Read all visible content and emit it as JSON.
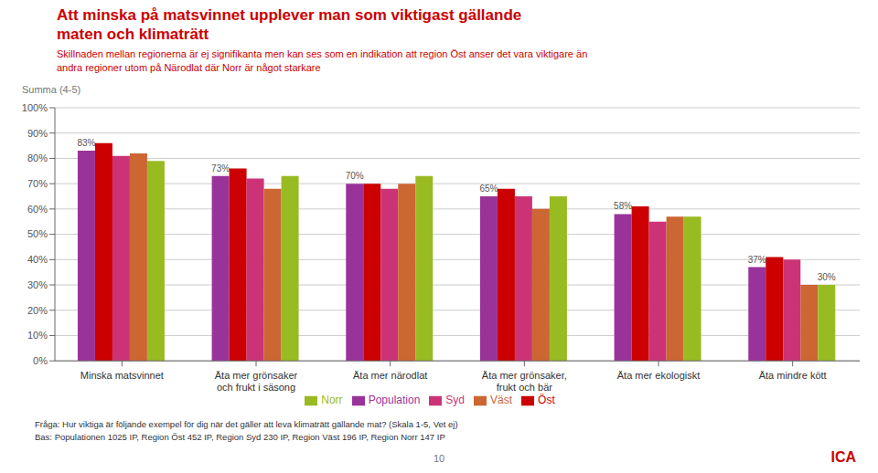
{
  "chart_data": {
    "type": "bar",
    "title": "Att minska på matsvinnet upplever man som viktigast gällande\nmaten och klimaträtt",
    "subtitle": "Skillnaden mellan regionerna är ej signifikanta men kan ses som en indikation att region Öst anser det vara viktigare än\nandra regioner utom på Närodlat där Norr är något starkare",
    "ylabel": "Summa (4-5)",
    "annotations": [
      "Fråga: Hur viktiga är följande exempel för dig när det gäller att leva klimaträtt gällande mat? (Skala 1-5, Vet ej)",
      "Bas: Populationen 1025 IP, Region Öst 452 IP, Region Syd  230 IP, Region Väst 196 IP, Region Norr 147 IP",
      "10",
      "ICA"
    ],
    "categories": [
      "Minska matsvinnet",
      "Äta mer grönsaker\noch frukt i säsong",
      "Äta mer närodlat",
      "Äta mer grönsaker,\nfrukt och bär",
      "Äta mer ekologiskt",
      "Äta mindre kött"
    ],
    "series": [
      {
        "name": "Population",
        "color": "#993399",
        "values": [
          83,
          73,
          70,
          65,
          58,
          37
        ],
        "value_labels": [
          "83%",
          "73%",
          "70%",
          "65%",
          "58%",
          "37%"
        ]
      },
      {
        "name": "Öst",
        "color": "#CC0000",
        "values": [
          86,
          76,
          70,
          68,
          61,
          41
        ]
      },
      {
        "name": "Syd",
        "color": "#CC3377",
        "values": [
          81,
          72,
          68,
          65,
          55,
          40
        ]
      },
      {
        "name": "Väst",
        "color": "#CC6633",
        "values": [
          82,
          68,
          70,
          60,
          57,
          30
        ]
      },
      {
        "name": "Norr",
        "color": "#99BB22",
        "values": [
          79,
          73,
          73,
          65,
          57,
          30
        ],
        "value_labels": [
          null,
          null,
          null,
          null,
          null,
          "30%"
        ]
      }
    ],
    "ylim": [
      0,
      100
    ],
    "yticks": [
      {
        "value": 0,
        "label": "0%"
      },
      {
        "value": 10,
        "label": "10%"
      },
      {
        "value": 20,
        "label": "20%"
      },
      {
        "value": 30,
        "label": "30%"
      },
      {
        "value": 40,
        "label": "40%"
      },
      {
        "value": 50,
        "label": "50%"
      },
      {
        "value": 60,
        "label": "60%"
      },
      {
        "value": 70,
        "label": "70%"
      },
      {
        "value": 80,
        "label": "80%"
      },
      {
        "value": 90,
        "label": "90%"
      },
      {
        "value": 100,
        "label": "100%"
      }
    ],
    "grid": true,
    "legend": "bottom"
  }
}
